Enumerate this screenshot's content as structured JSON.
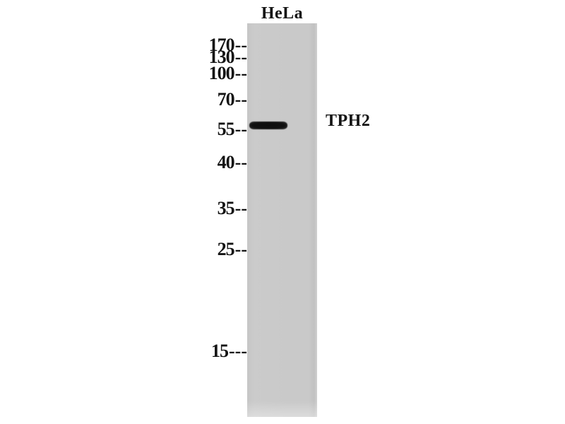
{
  "figure": {
    "type": "western-blot",
    "lane_label": "HeLa",
    "band_label": "TPH2",
    "markers": [
      {
        "label": "170",
        "ticks": "--"
      },
      {
        "label": "130",
        "ticks": "--"
      },
      {
        "label": "100",
        "ticks": "--"
      },
      {
        "label": "70",
        "ticks": "--"
      },
      {
        "label": "55",
        "ticks": "--"
      },
      {
        "label": "40",
        "ticks": "--"
      },
      {
        "label": "35",
        "ticks": "--"
      },
      {
        "label": "25",
        "ticks": "--"
      },
      {
        "label": "15",
        "ticks": "---"
      }
    ],
    "band": {
      "approx_kda": "between 55 and 70, near 60",
      "lane": "HeLa"
    },
    "colors": {
      "background": "#ffffff",
      "lane_gray": "#c9c9c9",
      "band_black": "#101010",
      "text": "#141414"
    }
  }
}
